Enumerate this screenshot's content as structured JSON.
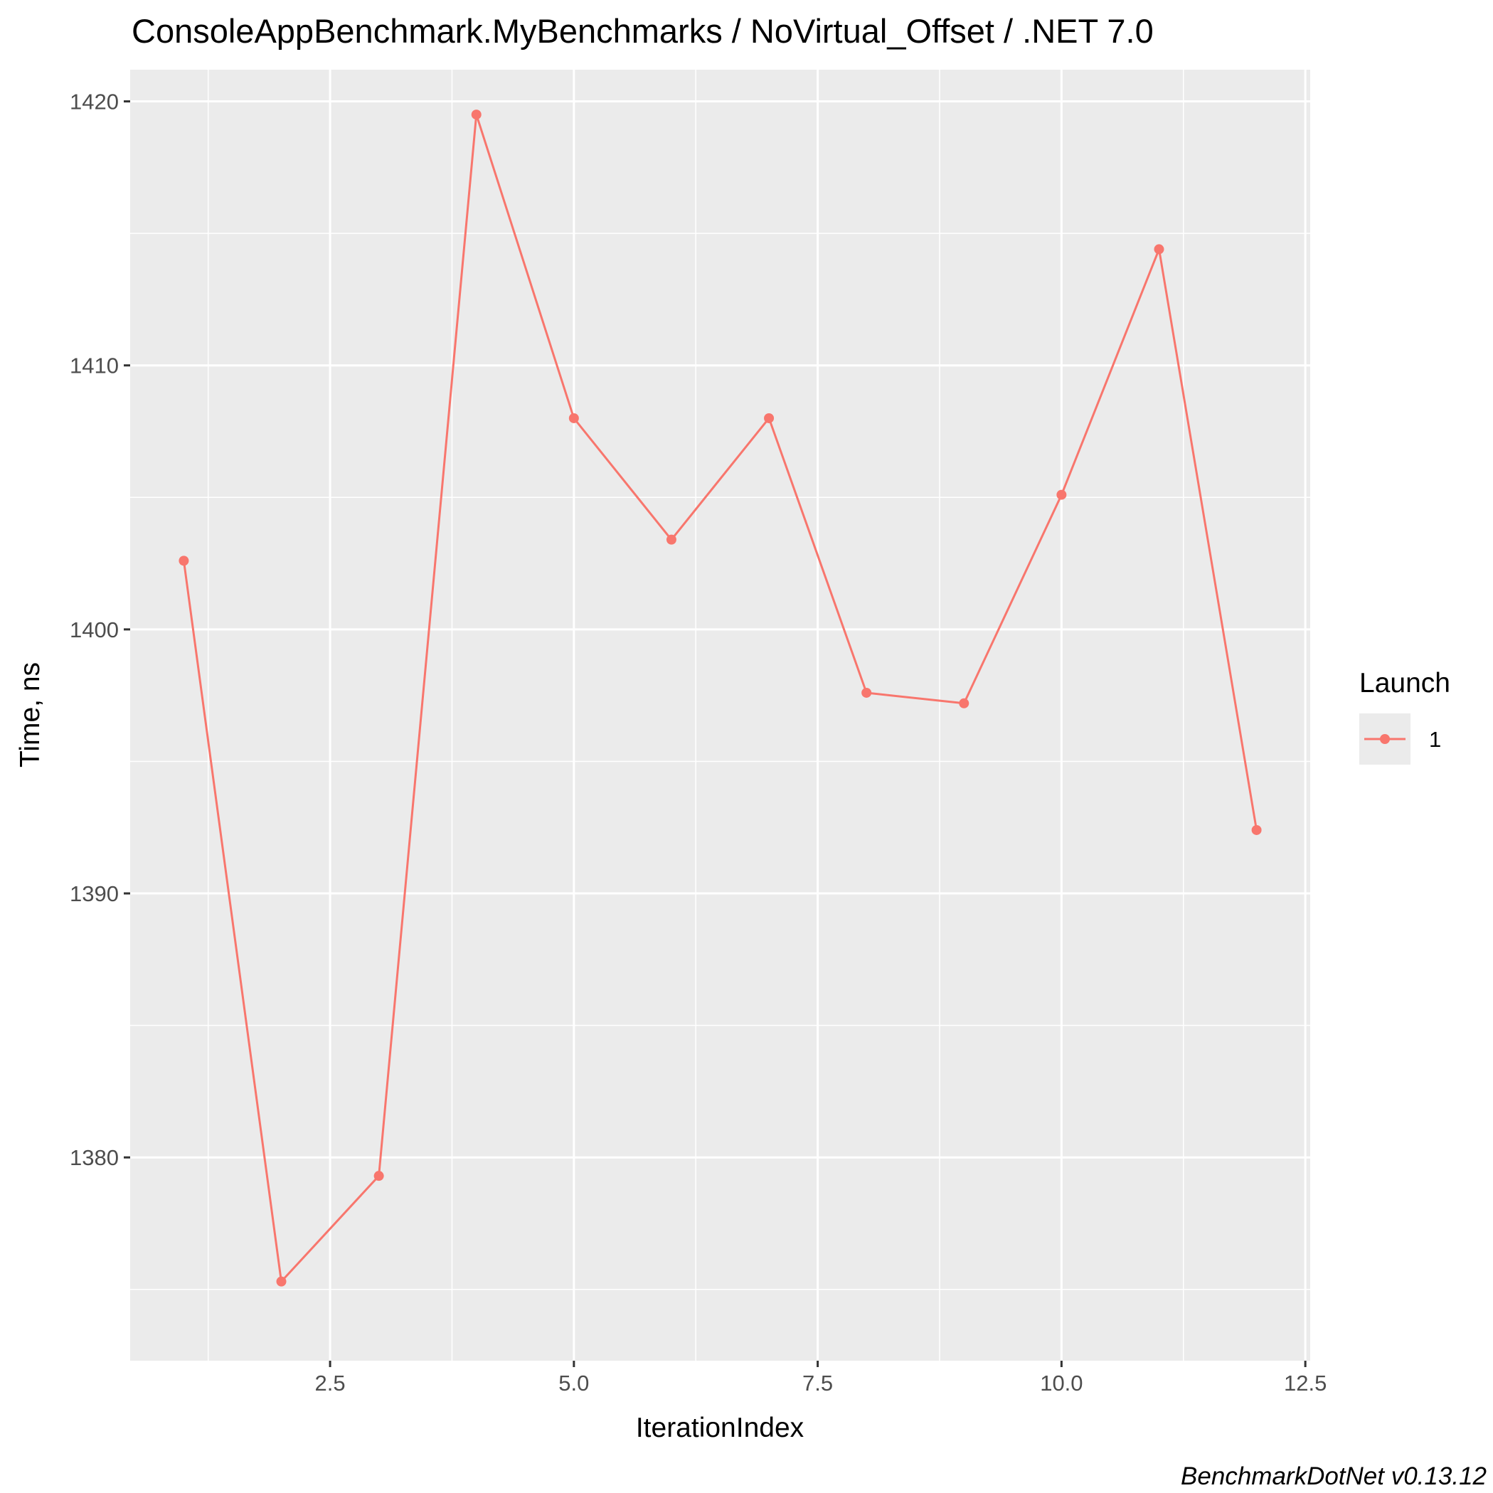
{
  "chart_data": {
    "type": "line",
    "title": "ConsoleAppBenchmark.MyBenchmarks / NoVirtual_Offset / .NET 7.0",
    "xlabel": "IterationIndex",
    "ylabel": "Time, ns",
    "caption": "BenchmarkDotNet v0.13.12",
    "xlim": [
      0.45,
      12.55
    ],
    "ylim": [
      1372.3,
      1421.2
    ],
    "x_ticks": [
      2.5,
      5.0,
      7.5,
      10.0,
      12.5
    ],
    "x_tick_labels": [
      "2.5",
      "5.0",
      "7.5",
      "10.0",
      "12.5"
    ],
    "y_ticks": [
      1380,
      1390,
      1400,
      1410,
      1420
    ],
    "y_tick_labels": [
      "1380",
      "1390",
      "1400",
      "1410",
      "1420"
    ],
    "grid": true,
    "legend": {
      "title": "Launch",
      "position": "right"
    },
    "series": [
      {
        "name": "1",
        "color": "#f8766d",
        "x": [
          1,
          2,
          3,
          4,
          5,
          6,
          7,
          8,
          9,
          10,
          11,
          12
        ],
        "y": [
          1402.6,
          1375.3,
          1379.3,
          1419.5,
          1408.0,
          1403.4,
          1408.0,
          1397.6,
          1397.2,
          1405.1,
          1414.4,
          1392.4
        ]
      }
    ]
  }
}
